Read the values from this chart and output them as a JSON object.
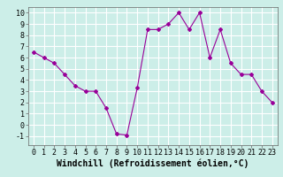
{
  "x": [
    0,
    1,
    2,
    3,
    4,
    5,
    6,
    7,
    8,
    9,
    10,
    11,
    12,
    13,
    14,
    15,
    16,
    17,
    18,
    19,
    20,
    21,
    22,
    23
  ],
  "y": [
    6.5,
    6.0,
    5.5,
    4.5,
    3.5,
    3.0,
    3.0,
    1.5,
    -0.8,
    -0.9,
    3.3,
    8.5,
    8.5,
    9.0,
    10.0,
    8.5,
    10.0,
    6.0,
    8.5,
    5.5,
    4.5,
    4.5,
    3.0,
    2.0
  ],
  "line_color": "#990099",
  "marker": "D",
  "marker_size": 2,
  "bg_color": "#cceee8",
  "grid_color": "#ffffff",
  "xlabel": "Windchill (Refroidissement éolien,°C)",
  "ylim": [
    -1.8,
    10.5
  ],
  "xlim": [
    -0.5,
    23.5
  ],
  "yticks": [
    -1,
    0,
    1,
    2,
    3,
    4,
    5,
    6,
    7,
    8,
    9,
    10
  ],
  "xticks": [
    0,
    1,
    2,
    3,
    4,
    5,
    6,
    7,
    8,
    9,
    10,
    11,
    12,
    13,
    14,
    15,
    16,
    17,
    18,
    19,
    20,
    21,
    22,
    23
  ],
  "tick_fontsize": 6,
  "xlabel_fontsize": 7
}
